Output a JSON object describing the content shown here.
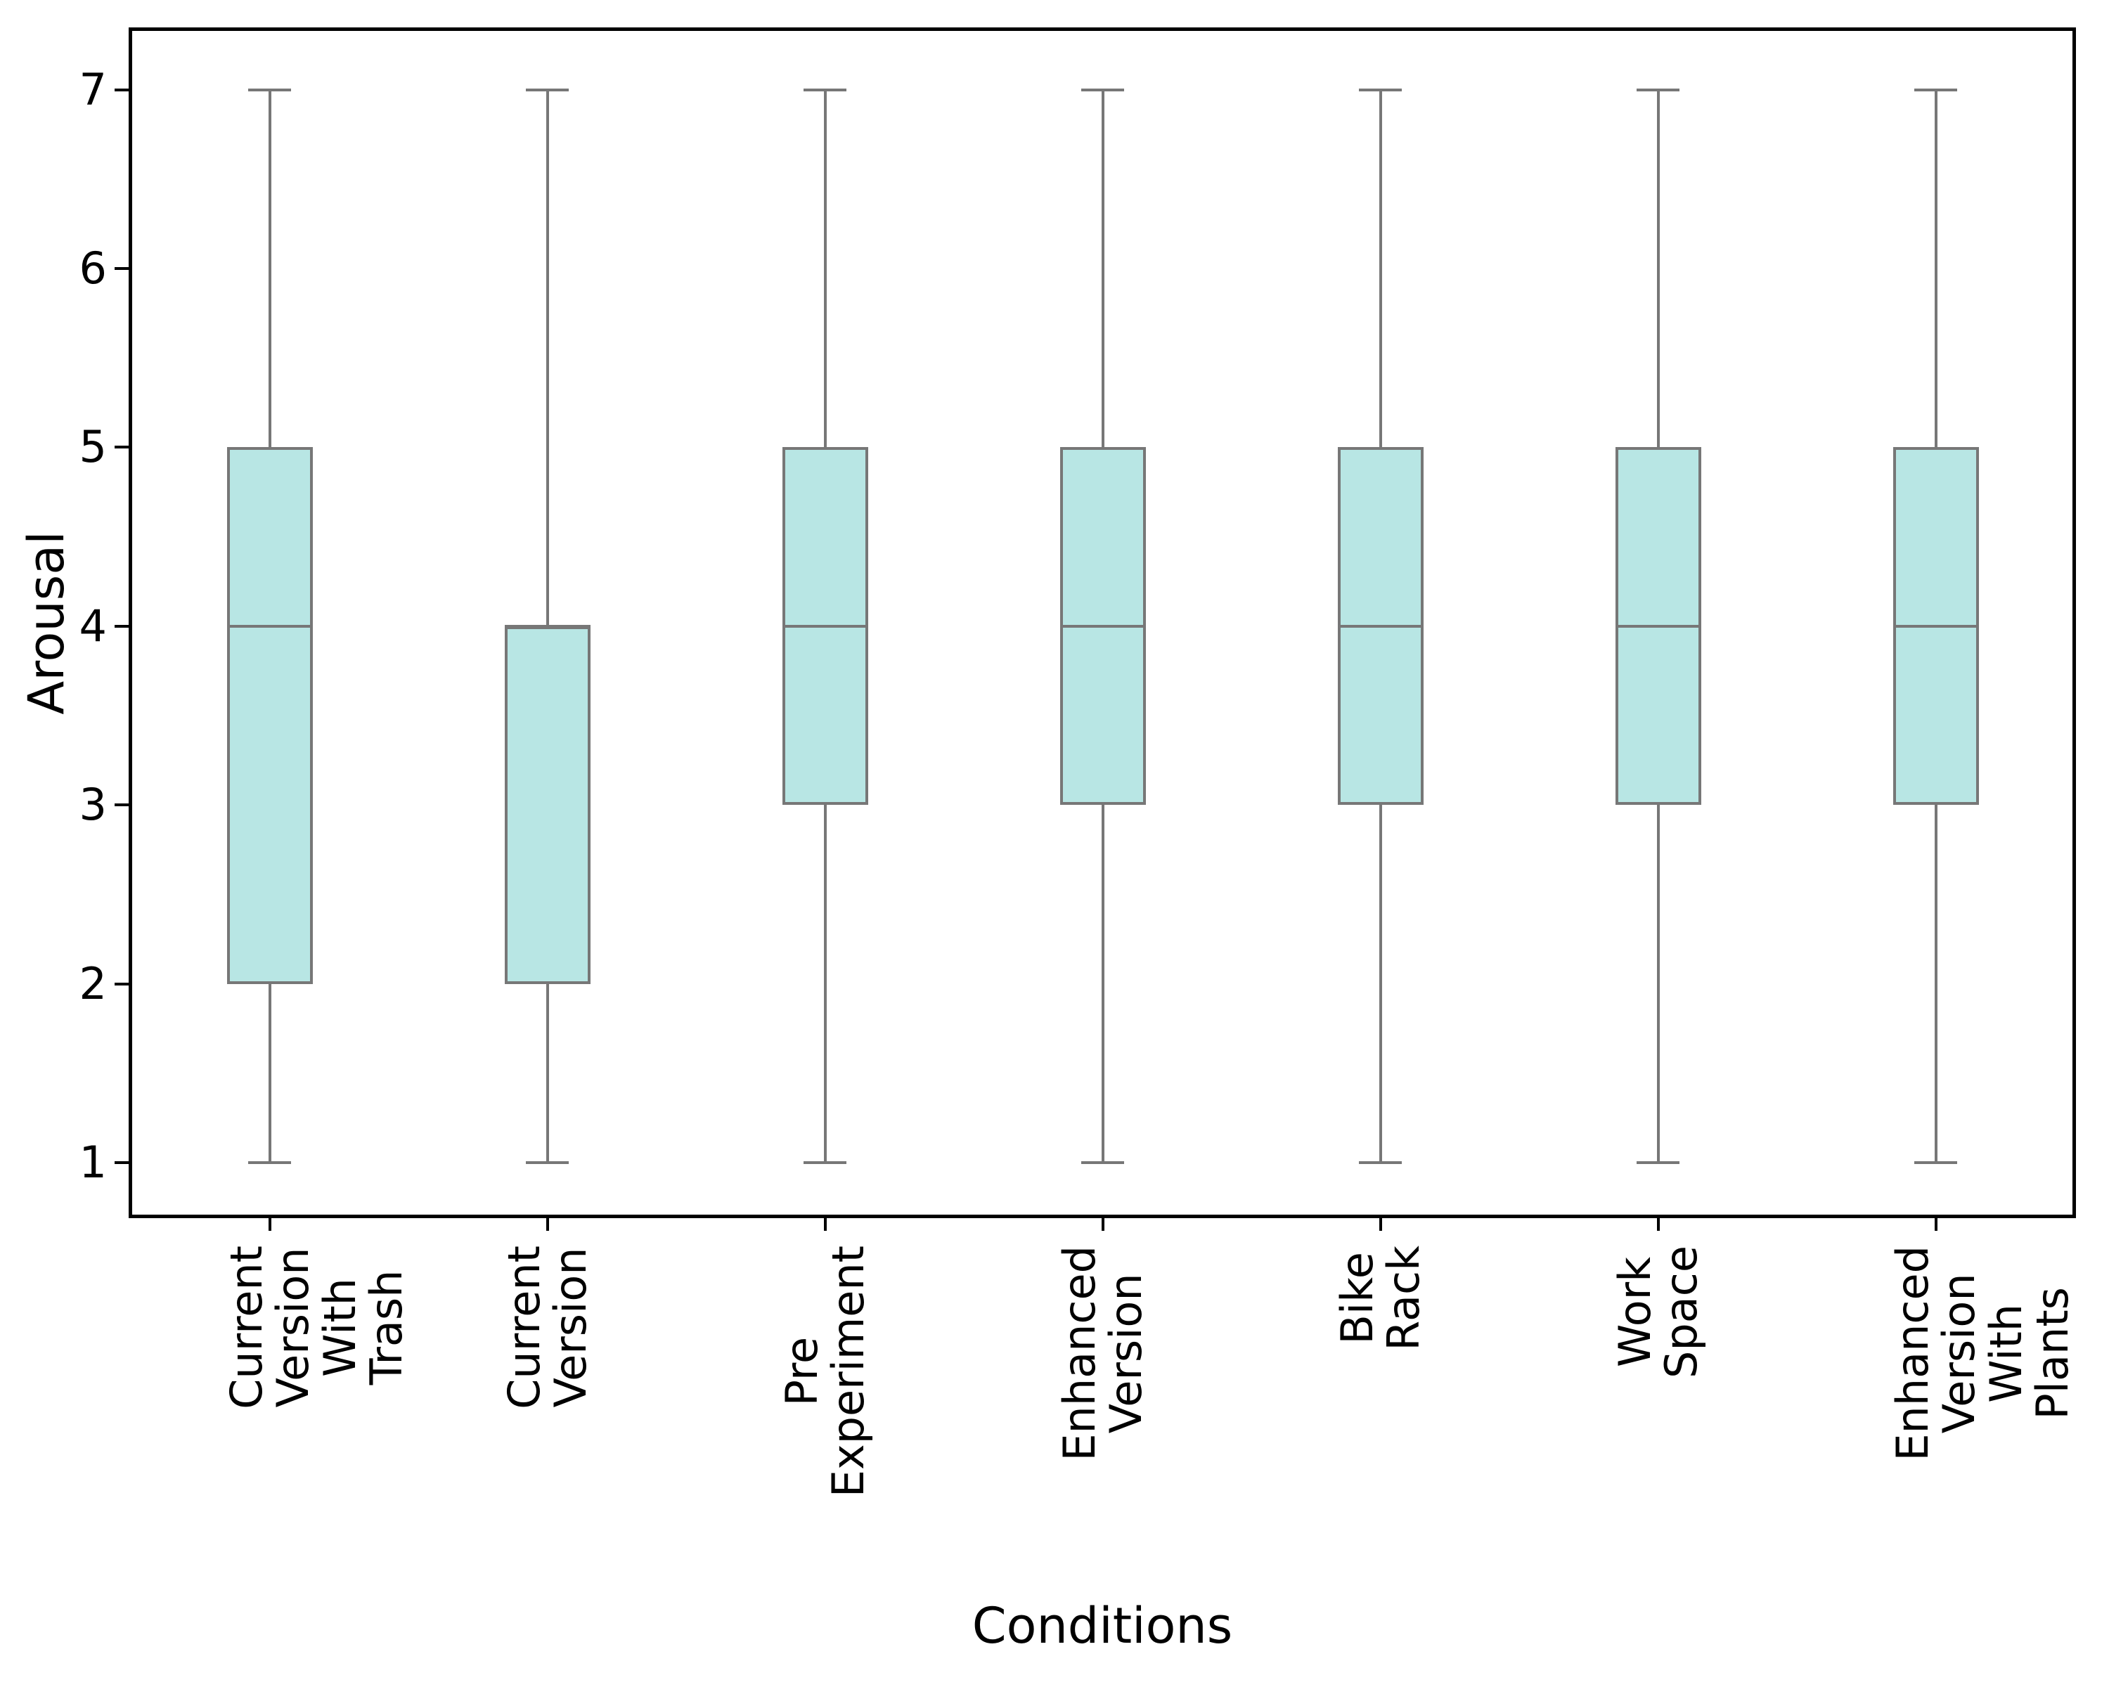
{
  "figure": {
    "background": "#ffffff"
  },
  "chart_data": {
    "type": "boxplot",
    "title": "",
    "xlabel": "Conditions",
    "ylabel": "Arousal",
    "orientation": "vertical",
    "grid": false,
    "legend": null,
    "categories": [
      "Current Version\nWith Trash",
      "Current\nVersion",
      "Pre\nExperiment",
      "Enhanced\nVersion",
      "Bike\nRack",
      "Work\nSpace",
      "Enhanced Version\nWith Plants"
    ],
    "stats": [
      {
        "label": "Current Version With Trash",
        "whislo": 1,
        "q1": 2,
        "med": 4,
        "q3": 5,
        "whishi": 7
      },
      {
        "label": "Current Version",
        "whislo": 1,
        "q1": 2,
        "med": 4,
        "q3": 4,
        "whishi": 7
      },
      {
        "label": "Pre Experiment",
        "whislo": 1,
        "q1": 3,
        "med": 4,
        "q3": 5,
        "whishi": 7
      },
      {
        "label": "Enhanced Version",
        "whislo": 1,
        "q1": 3,
        "med": 4,
        "q3": 5,
        "whishi": 7
      },
      {
        "label": "Bike Rack",
        "whislo": 1,
        "q1": 3,
        "med": 4,
        "q3": 5,
        "whishi": 7
      },
      {
        "label": "Work Space",
        "whislo": 1,
        "q1": 3,
        "med": 4,
        "q3": 5,
        "whishi": 7
      },
      {
        "label": "Enhanced Version With Plants",
        "whislo": 1,
        "q1": 3,
        "med": 4,
        "q3": 5,
        "whishi": 7
      }
    ],
    "yticks": [
      1,
      2,
      3,
      4,
      5,
      6,
      7
    ],
    "ylim": [
      0.703,
      7.336
    ],
    "xlim": [
      0.5,
      7.5
    ],
    "colors": {
      "box_fill": "#B8E6E4",
      "box_edge": "#777777",
      "whisker": "#777777",
      "cap": "#777777",
      "median": "#777777",
      "spine": "#000000",
      "text": "#000000",
      "background": "#ffffff"
    }
  }
}
